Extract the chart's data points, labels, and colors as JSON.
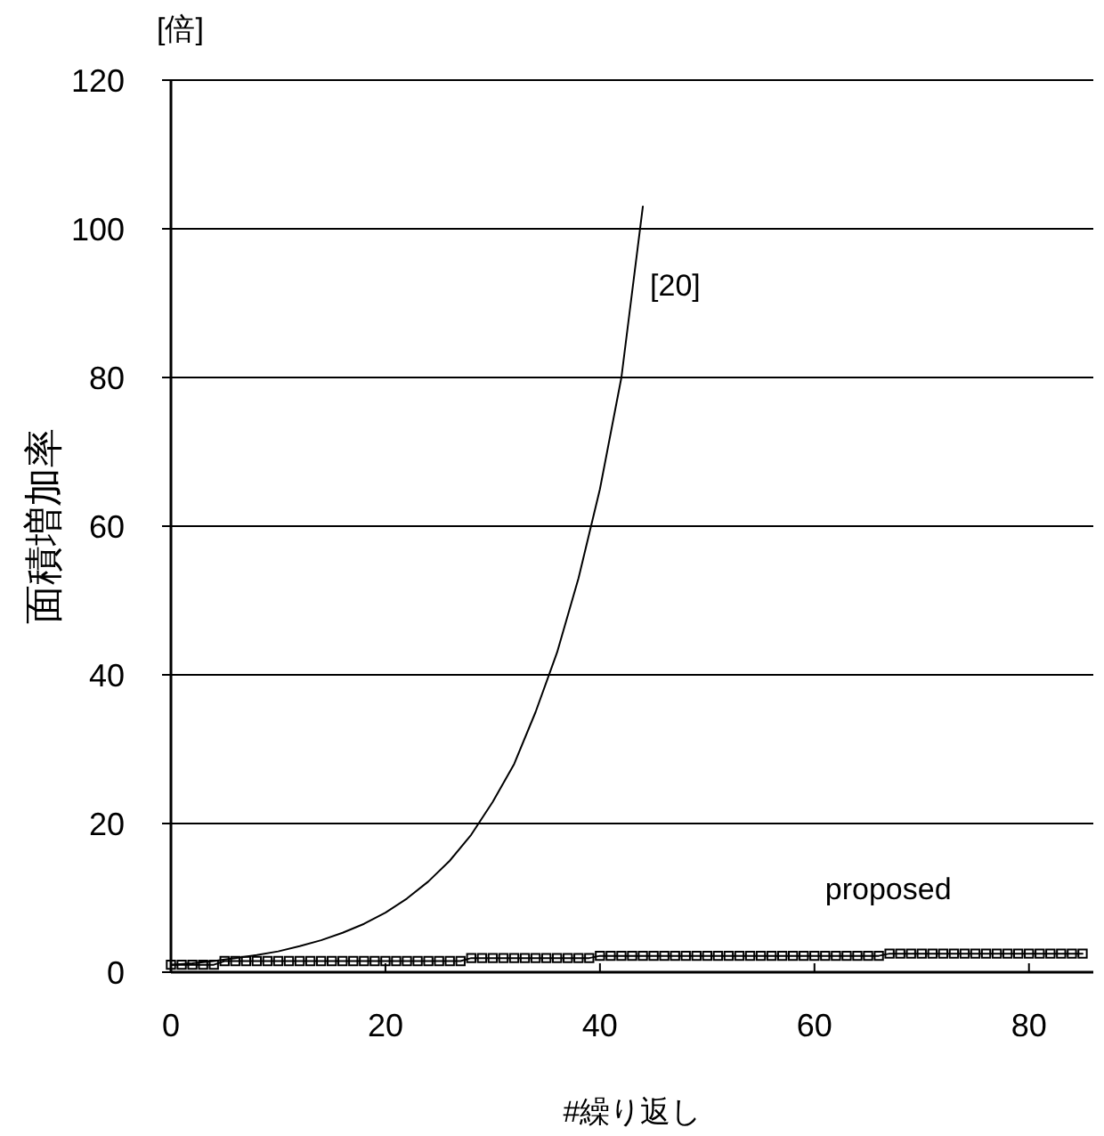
{
  "chart_data": {
    "type": "line",
    "ylabel": "面積増加率",
    "xlabel": "#繰り返し",
    "annotations": [
      "[倍]"
    ],
    "xlim": [
      0,
      86
    ],
    "xticks": [
      0,
      20,
      40,
      60,
      80
    ],
    "ylim": [
      0,
      120
    ],
    "yticks": [
      0,
      20,
      40,
      60,
      80,
      100,
      120
    ],
    "grid": "y",
    "series": [
      {
        "name": "[20]",
        "color": "#000000",
        "marker": "none",
        "x": [
          0,
          2,
          4,
          6,
          8,
          10,
          12,
          14,
          16,
          18,
          20,
          22,
          24,
          26,
          28,
          30,
          32,
          34,
          36,
          38,
          40,
          42,
          44
        ],
        "values": [
          1,
          1.2,
          1.5,
          1.9,
          2.3,
          2.8,
          3.5,
          4.3,
          5.3,
          6.5,
          8,
          9.9,
          12.2,
          15,
          18.5,
          22.9,
          28,
          35,
          43,
          53,
          65,
          80,
          103
        ]
      },
      {
        "name": "proposed",
        "color": "#000000",
        "marker": "square",
        "x": [
          0,
          1,
          2,
          3,
          4,
          5,
          6,
          7,
          8,
          9,
          10,
          11,
          12,
          13,
          14,
          15,
          16,
          17,
          18,
          19,
          20,
          21,
          22,
          23,
          24,
          25,
          26,
          27,
          28,
          29,
          30,
          31,
          32,
          33,
          34,
          35,
          36,
          37,
          38,
          39,
          40,
          41,
          42,
          43,
          44,
          45,
          46,
          47,
          48,
          49,
          50,
          51,
          52,
          53,
          54,
          55,
          56,
          57,
          58,
          59,
          60,
          61,
          62,
          63,
          64,
          65,
          66,
          67,
          68,
          69,
          70,
          71,
          72,
          73,
          74,
          75,
          76,
          77,
          78,
          79,
          80,
          81,
          82,
          83,
          84,
          85
        ],
        "values": [
          1,
          1,
          1,
          1,
          1,
          1.5,
          1.5,
          1.5,
          1.5,
          1.5,
          1.5,
          1.5,
          1.5,
          1.5,
          1.5,
          1.5,
          1.5,
          1.5,
          1.5,
          1.5,
          1.5,
          1.5,
          1.5,
          1.5,
          1.5,
          1.5,
          1.5,
          1.5,
          1.9,
          1.9,
          1.9,
          1.9,
          1.9,
          1.9,
          1.9,
          1.9,
          1.9,
          1.9,
          1.9,
          1.9,
          2.2,
          2.2,
          2.2,
          2.2,
          2.2,
          2.2,
          2.2,
          2.2,
          2.2,
          2.2,
          2.2,
          2.2,
          2.2,
          2.2,
          2.2,
          2.2,
          2.2,
          2.2,
          2.2,
          2.2,
          2.2,
          2.2,
          2.2,
          2.2,
          2.2,
          2.2,
          2.2,
          2.5,
          2.5,
          2.5,
          2.5,
          2.5,
          2.5,
          2.5,
          2.5,
          2.5,
          2.5,
          2.5,
          2.5,
          2.5,
          2.5,
          2.5,
          2.5,
          2.5,
          2.5,
          2.5
        ]
      }
    ]
  }
}
